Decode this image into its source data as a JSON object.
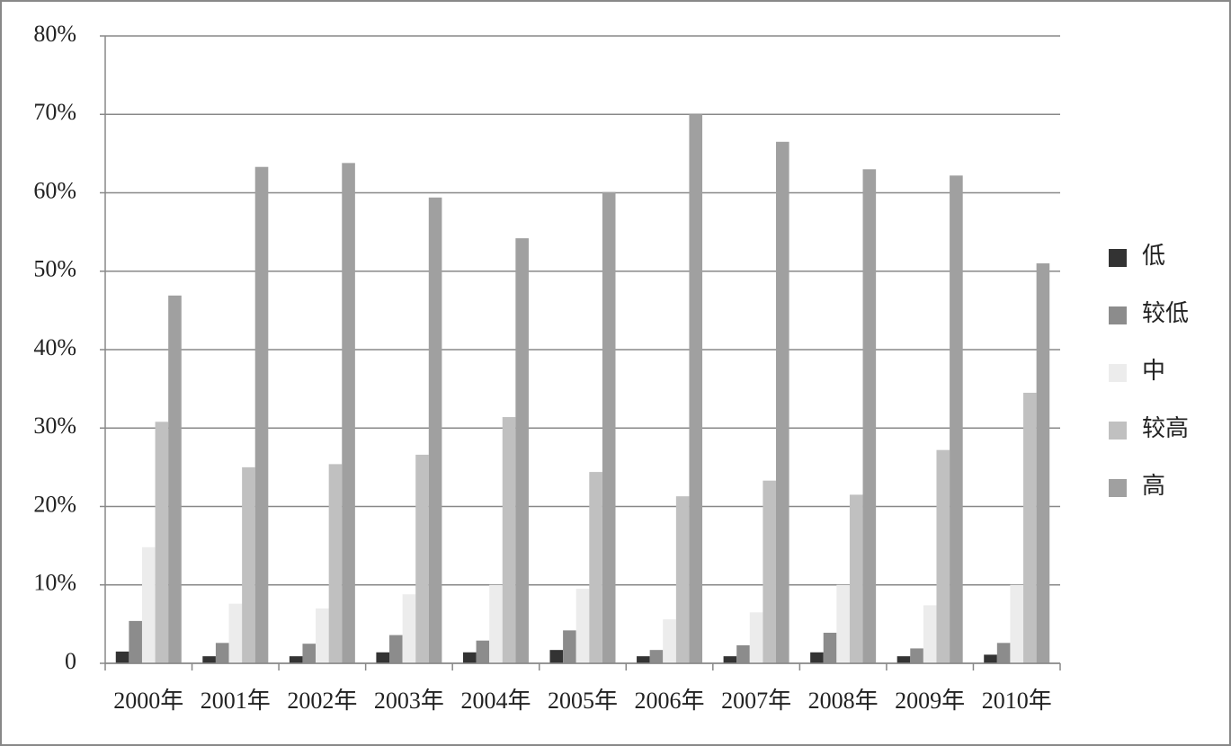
{
  "chart_data": {
    "type": "bar",
    "categories": [
      "2000年",
      "2001年",
      "2002年",
      "2003年",
      "2004年",
      "2005年",
      "2006年",
      "2007年",
      "2008年",
      "2009年",
      "2010年"
    ],
    "series": [
      {
        "name": "低",
        "color": "#333333",
        "values": [
          1.5,
          0.9,
          0.9,
          1.4,
          1.4,
          1.7,
          0.9,
          0.9,
          1.4,
          0.9,
          1.1
        ]
      },
      {
        "name": "较低",
        "color": "#8c8c8c",
        "values": [
          5.4,
          2.6,
          2.5,
          3.6,
          2.9,
          4.2,
          1.7,
          2.3,
          3.9,
          1.9,
          2.6
        ]
      },
      {
        "name": "中",
        "color": "#ececec",
        "values": [
          14.8,
          7.6,
          7.0,
          8.8,
          10.0,
          9.5,
          5.6,
          6.5,
          10.0,
          7.4,
          10.0
        ]
      },
      {
        "name": "较高",
        "color": "#c0c0c0",
        "values": [
          30.8,
          25.0,
          25.4,
          26.6,
          31.4,
          24.4,
          21.3,
          23.3,
          21.5,
          27.2,
          34.5
        ]
      },
      {
        "name": "高",
        "color": "#a0a0a0",
        "values": [
          46.9,
          63.3,
          63.8,
          59.4,
          54.2,
          60.1,
          70.0,
          66.5,
          63.0,
          62.2,
          51.0
        ]
      }
    ],
    "ylim": [
      0,
      80
    ],
    "yticks": [
      0,
      {
        "value": 10,
        "label": "10%"
      },
      {
        "value": 20,
        "label": "20%"
      },
      {
        "value": 30,
        "label": "30%"
      },
      {
        "value": 40,
        "label": "40%"
      },
      {
        "value": 50,
        "label": "50%"
      },
      {
        "value": 60,
        "label": "60%"
      },
      {
        "value": 70,
        "label": "70%"
      },
      {
        "value": 80,
        "label": "80%"
      }
    ],
    "grid": true,
    "legend": "right"
  }
}
